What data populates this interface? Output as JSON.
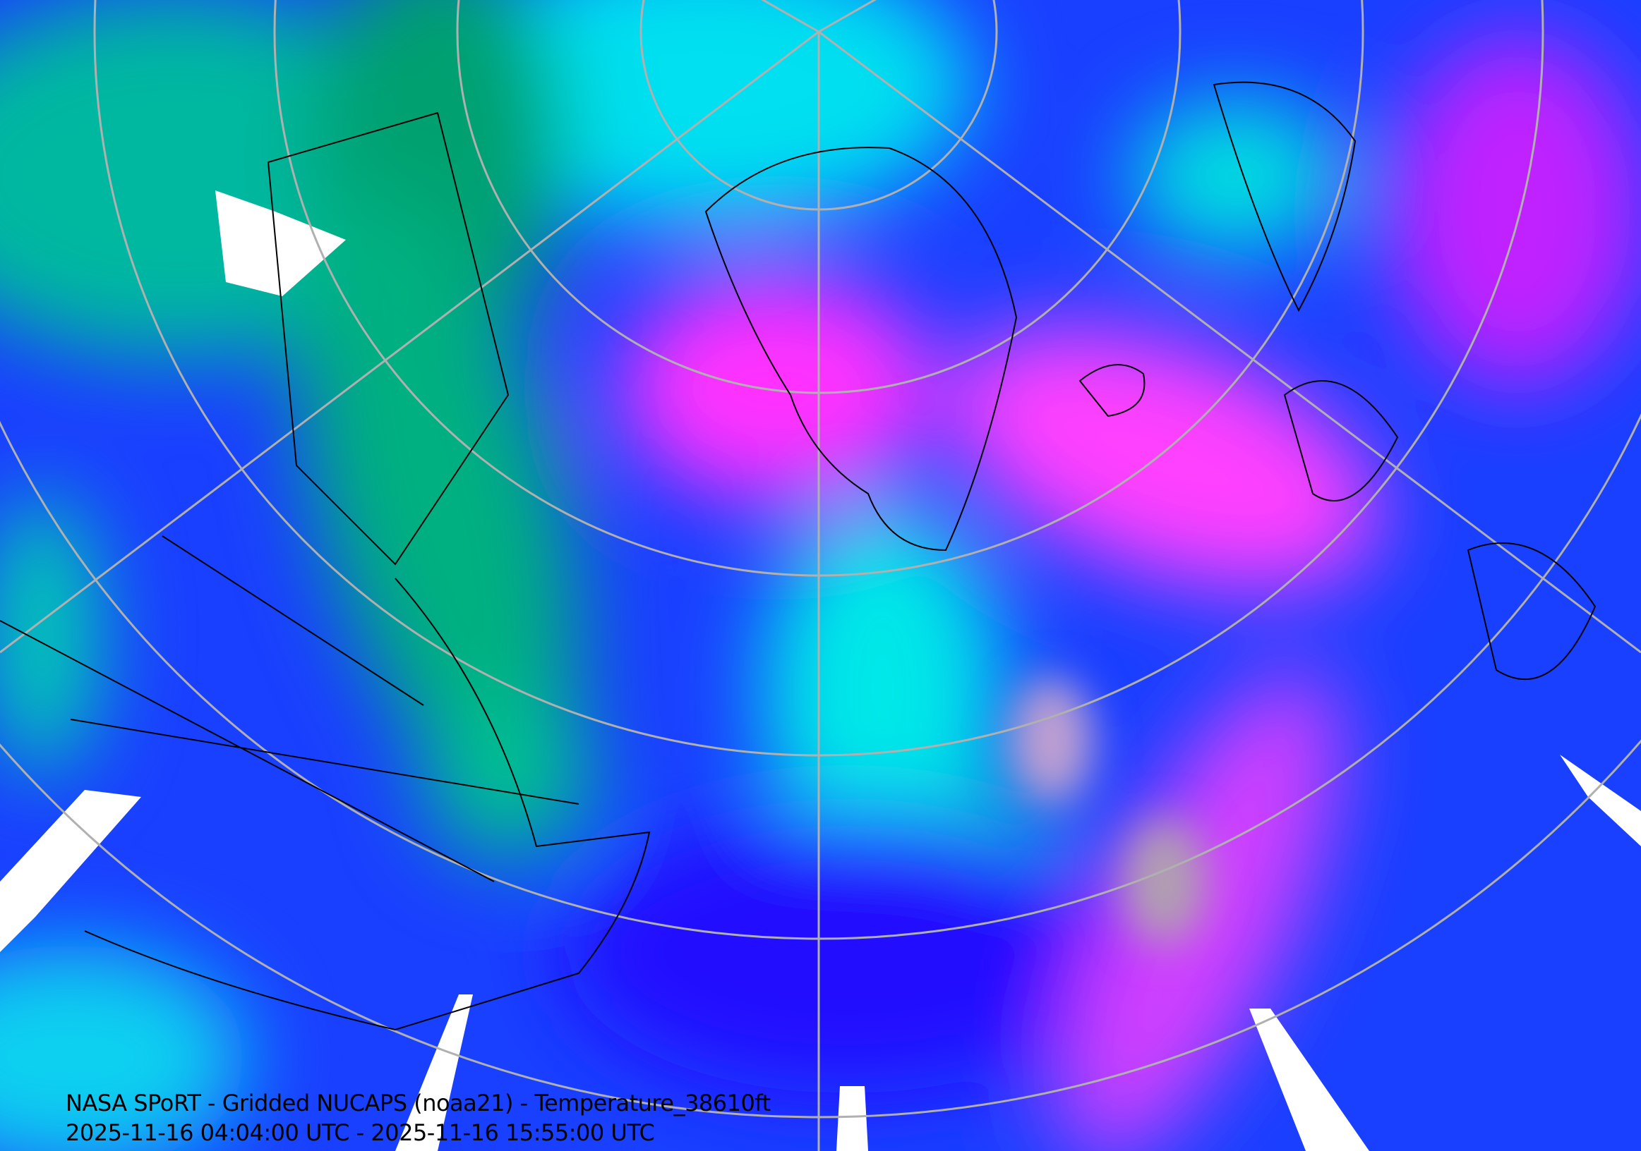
{
  "caption": {
    "title": "NASA SPoRT - Gridded NUCAPS (noaa21) - Temperature_38610ft",
    "time_range": "2025-11-16 04:04:00 UTC - 2025-11-16 15:55:00 UTC"
  },
  "map": {
    "projection": "north-polar-stereographic",
    "product": "temperature",
    "colors": {
      "cold_green": "#00a070",
      "cyan": "#00e8e8",
      "blue": "#1040ff",
      "deep_blue": "#2000ff",
      "magenta": "#ff20ff",
      "grey": "#a0a0a0",
      "graticule": "#b0b0b0",
      "coastline": "#000000"
    }
  }
}
